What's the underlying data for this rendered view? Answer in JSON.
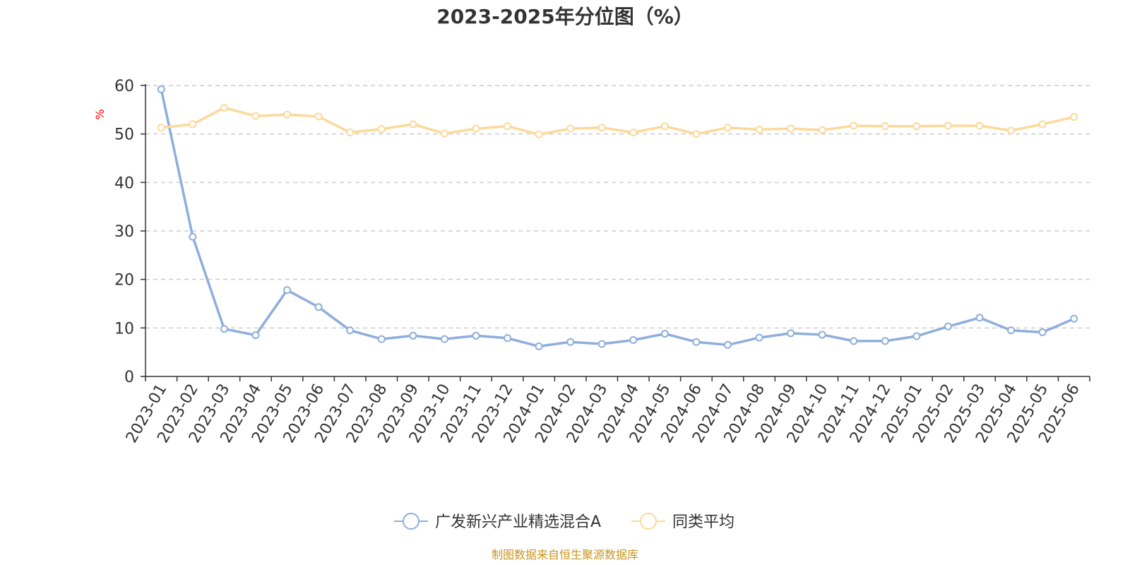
{
  "chart_data": {
    "type": "line",
    "title": "2023-2025年分位图（%）",
    "ylabel": "%",
    "ylim": [
      0,
      60
    ],
    "yticks": [
      0,
      10,
      20,
      30,
      40,
      50,
      60
    ],
    "grid": true,
    "legend_placement": "bottom-center",
    "categories": [
      "2023-01",
      "2023-02",
      "2023-03",
      "2023-04",
      "2023-05",
      "2023-06",
      "2023-07",
      "2023-08",
      "2023-09",
      "2023-10",
      "2023-11",
      "2023-12",
      "2024-01",
      "2024-02",
      "2024-03",
      "2024-04",
      "2024-05",
      "2024-06",
      "2024-07",
      "2024-08",
      "2024-09",
      "2024-10",
      "2024-11",
      "2024-12",
      "2025-01",
      "2025-02",
      "2025-03",
      "2025-04",
      "2025-05",
      "2025-06"
    ],
    "series": [
      {
        "name": "广发新兴产业精选混合A",
        "color": "#8eaedc",
        "values": [
          59.2,
          28.8,
          9.8,
          8.5,
          17.8,
          14.3,
          9.5,
          7.7,
          8.4,
          7.7,
          8.4,
          7.9,
          6.2,
          7.1,
          6.7,
          7.5,
          8.8,
          7.1,
          6.5,
          8.0,
          8.9,
          8.6,
          7.3,
          7.3,
          8.3,
          10.3,
          12.1,
          9.5,
          9.1,
          11.9
        ]
      },
      {
        "name": "同类平均",
        "color": "#fcd99a",
        "values": [
          51.3,
          52.0,
          55.4,
          53.7,
          54.0,
          53.6,
          50.3,
          51.0,
          52.0,
          50.1,
          51.1,
          51.6,
          49.9,
          51.1,
          51.3,
          50.3,
          51.6,
          50.0,
          51.3,
          50.9,
          51.1,
          50.8,
          51.7,
          51.6,
          51.6,
          51.7,
          51.7,
          50.7,
          52.0,
          53.5
        ]
      }
    ]
  },
  "source_text": "制图数据来自恒生聚源数据库"
}
